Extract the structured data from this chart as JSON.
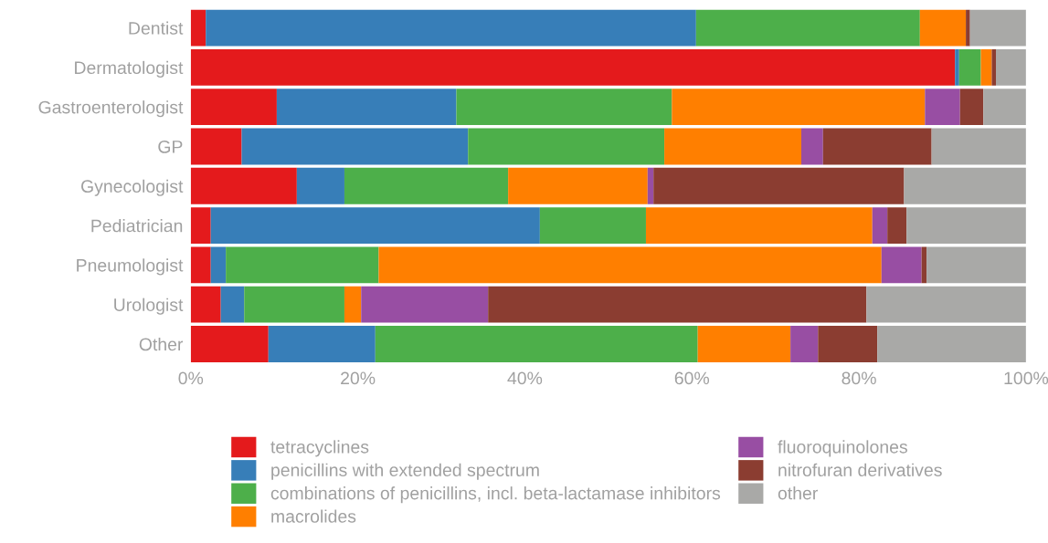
{
  "chart_data": {
    "type": "bar",
    "orientation": "horizontal",
    "stacked": true,
    "categories": [
      "Dentist",
      "Dermatologist",
      "Gastroenterologist",
      "GP",
      "Gynecologist",
      "Pediatrician",
      "Pneumologist",
      "Urologist",
      "Other"
    ],
    "series": [
      {
        "name": "tetracyclines",
        "color": "#e41a1c",
        "values": [
          1.8,
          91.5,
          10.3,
          6.1,
          12.7,
          2.4,
          2.4,
          3.6,
          9.3
        ]
      },
      {
        "name": "penicillins with extended spectrum",
        "color": "#377eb8",
        "values": [
          58.7,
          0.5,
          21.5,
          27.1,
          5.7,
          39.4,
          1.8,
          2.8,
          12.8
        ]
      },
      {
        "name": "combinations of penicillins, incl. beta-lactamase inhibitors",
        "color": "#4daf4a",
        "values": [
          26.8,
          2.6,
          25.8,
          23.5,
          19.6,
          12.7,
          18.3,
          12.0,
          38.6
        ]
      },
      {
        "name": "macrolides",
        "color": "#ff7f00",
        "values": [
          5.5,
          1.3,
          30.3,
          16.4,
          16.7,
          27.1,
          60.2,
          2.0,
          11.1
        ]
      },
      {
        "name": "fluoroquinolones",
        "color": "#984ea3",
        "values": [
          0,
          0,
          4.2,
          2.6,
          0.7,
          1.8,
          4.8,
          15.2,
          3.3
        ]
      },
      {
        "name": "nitrofuran derivatives",
        "color": "#8b3d31",
        "values": [
          0.5,
          0.5,
          2.8,
          13.0,
          30.0,
          2.3,
          0.6,
          45.3,
          7.1
        ]
      },
      {
        "name": "other",
        "color": "#a9a9a7",
        "values": [
          6.7,
          3.6,
          5.1,
          11.3,
          14.6,
          14.3,
          11.9,
          19.1,
          17.8
        ]
      }
    ],
    "xlim": [
      0,
      100
    ],
    "xticks": [
      {
        "value": 0,
        "label": "0%"
      },
      {
        "value": 20,
        "label": "20%"
      },
      {
        "value": 40,
        "label": "40%"
      },
      {
        "value": 60,
        "label": "60%"
      },
      {
        "value": 80,
        "label": "80%"
      },
      {
        "value": 100,
        "label": "100%"
      }
    ],
    "grid": false,
    "legend": "bottom"
  }
}
